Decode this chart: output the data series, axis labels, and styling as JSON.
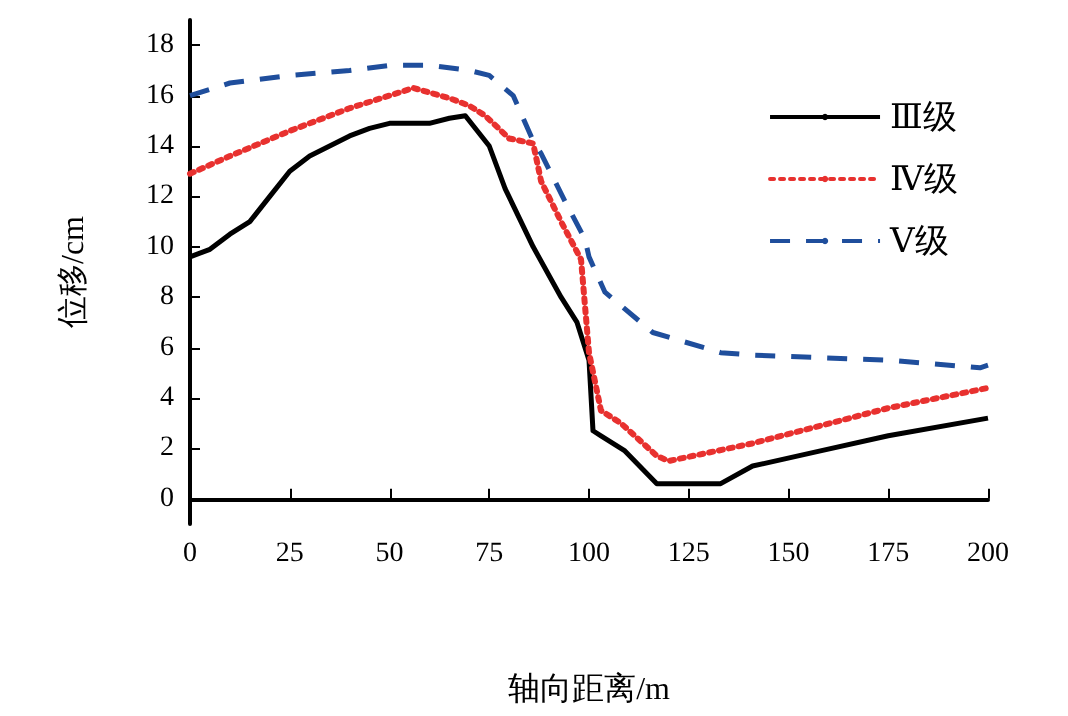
{
  "chart_data": {
    "type": "line",
    "xlabel": "轴向距离/m",
    "ylabel": "位移/cm",
    "xlim": [
      0,
      200
    ],
    "xticks": [
      0,
      25,
      50,
      75,
      100,
      125,
      150,
      175,
      200
    ],
    "ylim": [
      -1,
      19
    ],
    "yticks": [
      0,
      2,
      4,
      6,
      8,
      10,
      12,
      14,
      16,
      18
    ],
    "grid": false,
    "legend": "top right",
    "marker": "none",
    "series": [
      {
        "name": "Ⅲ级",
        "color": "#000000",
        "line_style": "solid",
        "x": [
          0,
          5,
          10,
          15,
          20,
          25,
          30,
          35,
          40,
          45,
          50,
          60,
          65,
          69,
          75,
          79,
          86,
          93,
          97,
          100,
          101,
          103,
          109,
          117,
          133,
          141,
          158,
          175,
          200
        ],
        "values": [
          9.6,
          9.9,
          10.5,
          11,
          12,
          13,
          13.6,
          14,
          14.4,
          14.7,
          14.9,
          14.9,
          15.1,
          15.2,
          14,
          12.3,
          10,
          8,
          7,
          5.5,
          2.7,
          2.5,
          1.9,
          0.6,
          0.6,
          1.3,
          1.9,
          2.5,
          3.2
        ]
      },
      {
        "name": "Ⅳ级",
        "color": "#e8312f",
        "line_style": "dotted",
        "x": [
          0,
          10,
          25,
          40,
          50,
          56,
          65,
          70,
          74,
          80,
          86,
          88,
          93,
          98,
          100,
          103,
          108,
          117,
          120,
          141,
          158,
          175,
          200
        ],
        "values": [
          12.9,
          13.6,
          14.6,
          15.5,
          16,
          16.3,
          15.9,
          15.6,
          15.2,
          14.3,
          14.1,
          12.6,
          11,
          9.5,
          5.8,
          3.5,
          3,
          1.7,
          1.5,
          2.2,
          2.9,
          3.6,
          4.4
        ]
      },
      {
        "name": "Ⅴ级",
        "color": "#1f4e9c",
        "line_style": "dashed",
        "x": [
          0,
          10,
          25,
          40,
          50,
          60,
          70,
          75,
          81,
          86,
          88,
          94,
          99,
          100,
          104,
          116,
          133,
          141,
          158,
          175,
          198,
          200
        ],
        "values": [
          16,
          16.5,
          16.8,
          17,
          17.2,
          17.2,
          17,
          16.8,
          16,
          14.2,
          13.7,
          11.8,
          10.3,
          9.6,
          8.2,
          6.6,
          5.8,
          5.7,
          5.6,
          5.5,
          5.2,
          5.3
        ]
      }
    ]
  }
}
